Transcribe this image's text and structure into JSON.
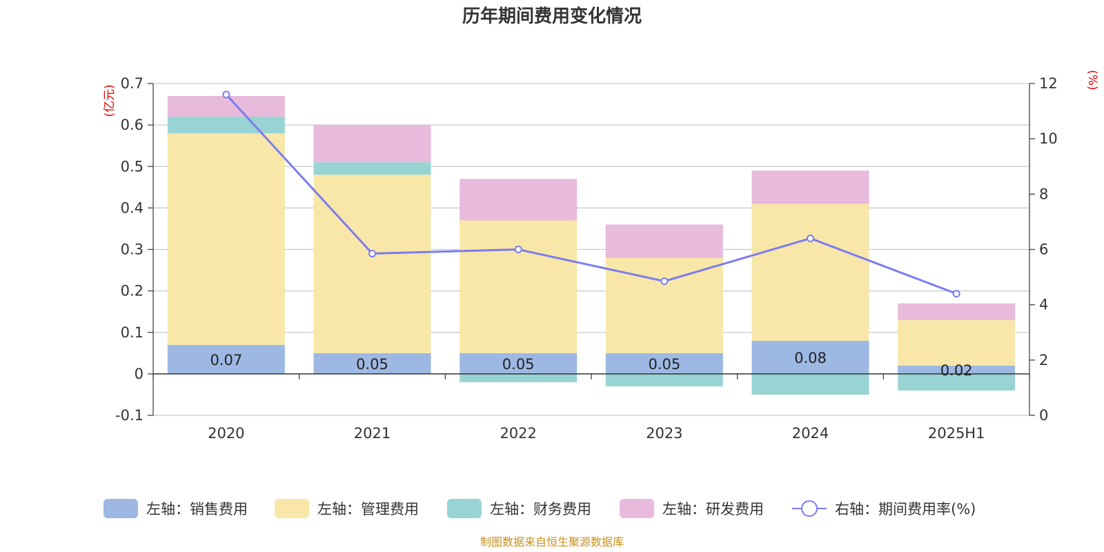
{
  "chart_data": {
    "type": "bar",
    "title": "历年期间费用变化情况",
    "categories": [
      "2020",
      "2021",
      "2022",
      "2023",
      "2024",
      "2025H1"
    ],
    "left_axis": {
      "unit": "(亿元)",
      "ylim": [
        -0.1,
        0.7
      ],
      "ticks": [
        -0.1,
        0,
        0.1,
        0.2,
        0.3,
        0.4,
        0.5,
        0.6,
        0.7
      ],
      "tick_labels": [
        "-0.1",
        "0",
        "0.1",
        "0.2",
        "0.3",
        "0.4",
        "0.5",
        "0.6",
        "0.7"
      ]
    },
    "right_axis": {
      "unit": "(%)",
      "ylim": [
        0,
        12
      ],
      "ticks": [
        0,
        2,
        4,
        6,
        8,
        10,
        12
      ],
      "tick_labels": [
        "0",
        "2",
        "4",
        "6",
        "8",
        "10",
        "12"
      ]
    },
    "series": [
      {
        "name": "左轴：销售费用",
        "kind": "bar",
        "color": "#9db8e3",
        "values": [
          0.07,
          0.05,
          0.05,
          0.05,
          0.08,
          0.02
        ],
        "labels": [
          "0.07",
          "0.05",
          "0.05",
          "0.05",
          "0.08",
          "0.02"
        ]
      },
      {
        "name": "左轴：管理费用",
        "kind": "bar",
        "color": "#f8e7a8",
        "values": [
          0.51,
          0.43,
          0.32,
          0.23,
          0.33,
          0.11
        ]
      },
      {
        "name": "左轴：财务费用",
        "kind": "bar",
        "color": "#98d4d4",
        "values": [
          0.04,
          0.03,
          -0.02,
          -0.03,
          -0.05,
          -0.04
        ]
      },
      {
        "name": "左轴：研发费用",
        "kind": "bar",
        "color": "#e8badb",
        "values": [
          0.05,
          0.09,
          0.1,
          0.08,
          0.08,
          0.04
        ]
      },
      {
        "name": "右轴：期间费用率(%)",
        "kind": "line",
        "axis": "right",
        "color": "#7b7bf0",
        "values": [
          11.6,
          5.85,
          6.0,
          4.85,
          6.4,
          4.4
        ]
      }
    ],
    "grid": true,
    "legend_position": "bottom"
  },
  "footer": {
    "source": "制图数据来自恒生聚源数据库"
  }
}
